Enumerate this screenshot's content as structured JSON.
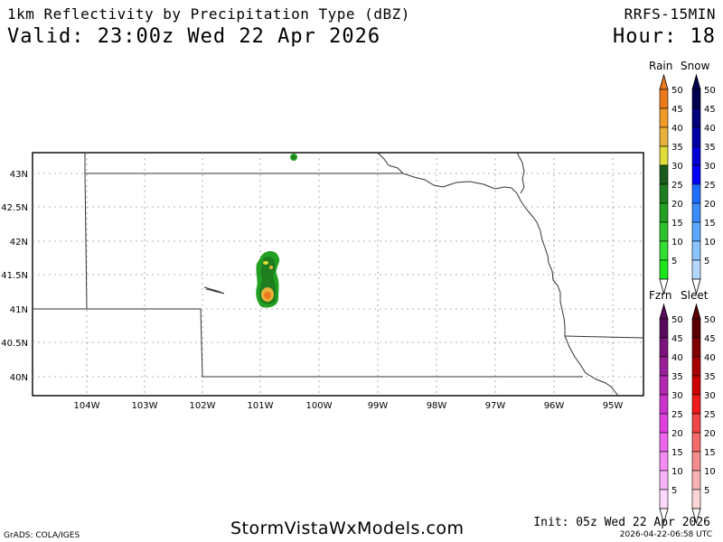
{
  "header": {
    "title": "1km Reflectivity by Precipitation Type (dBZ)",
    "valid": "Valid: 23:00z Wed 22 Apr 2026",
    "model": "RRFS-15MIN",
    "hour": "Hour: 18"
  },
  "footer": {
    "site": "StormVistaWxModels.com",
    "init": "Init: 05z Wed 22 Apr 2026",
    "timestamp": "2026-04-22-06:58 UTC",
    "credit": "GrADS: COLA/IGES"
  },
  "map": {
    "lat_labels": [
      "43N",
      "42.5N",
      "42N",
      "41.5N",
      "41N",
      "40.5N",
      "40N"
    ],
    "lon_labels": [
      "104W",
      "103W",
      "102W",
      "101W",
      "100W",
      "99W",
      "98W",
      "97W",
      "96W",
      "95W"
    ]
  },
  "legends": {
    "rain": {
      "label": "Rain",
      "values": [
        "50",
        "45",
        "40",
        "35",
        "30",
        "25",
        "20",
        "15",
        "10",
        "5"
      ],
      "colors": [
        "#ec7a1c",
        "#f09a2a",
        "#e8b23a",
        "#e0dc3a",
        "#1a5a1a",
        "#1e7d1e",
        "#22a022",
        "#2cc42c",
        "#33dd33",
        "#1de61d"
      ]
    },
    "snow": {
      "label": "Snow",
      "values": [
        "50",
        "45",
        "40",
        "35",
        "30",
        "25",
        "20",
        "15",
        "10",
        "5"
      ],
      "colors": [
        "#000050",
        "#00007a",
        "#0000a8",
        "#0000d4",
        "#0000ff",
        "#1e6eff",
        "#3c8cff",
        "#5aa8ff",
        "#8cc4ff",
        "#b4d8ff"
      ]
    },
    "fzrn": {
      "label": "Fzrn",
      "values": [
        "50",
        "45",
        "40",
        "35",
        "30",
        "25",
        "20",
        "15",
        "10",
        "5"
      ],
      "colors": [
        "#5a0a5a",
        "#7a147a",
        "#9a1e9a",
        "#b428b4",
        "#cc33cc",
        "#e040e0",
        "#ee66ee",
        "#f58cf5",
        "#f9b4f9",
        "#fcd8fc"
      ]
    },
    "sleet": {
      "label": "Sleet",
      "values": [
        "50",
        "45",
        "40",
        "35",
        "30",
        "25",
        "20",
        "15",
        "10",
        "5"
      ],
      "colors": [
        "#5a0000",
        "#800000",
        "#a80000",
        "#cc0000",
        "#ee1a1a",
        "#f04646",
        "#f26a6a",
        "#f48e8e",
        "#f8b2b2",
        "#fcd6d6"
      ]
    }
  }
}
